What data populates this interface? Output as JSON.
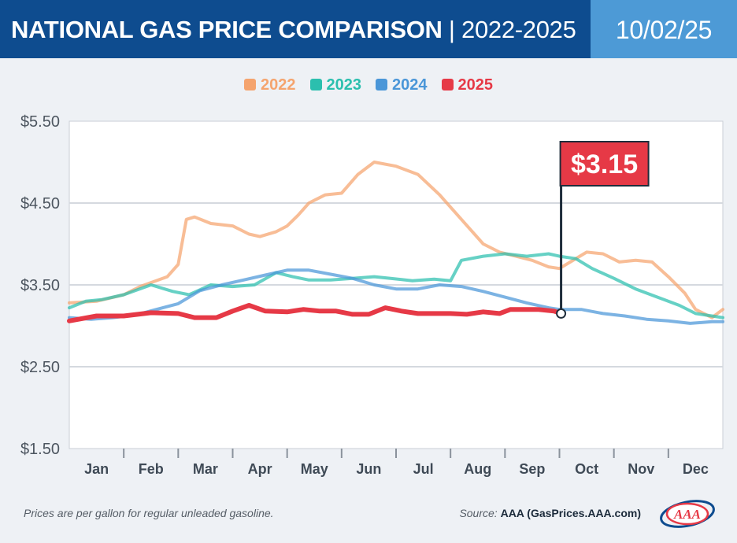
{
  "header": {
    "title_main": "NATIONAL GAS PRICE COMPARISON",
    "title_sep": " | ",
    "title_years": "2022-2025",
    "date": "10/02/25"
  },
  "colors": {
    "header_bg": "#0e4c8f",
    "date_bg": "#4d9ad6",
    "y2022": "#f5a46e",
    "y2023": "#2bbfae",
    "y2024": "#4a96d8",
    "y2025": "#e63946",
    "callout_bg": "#e63946"
  },
  "footnote": "Prices are per gallon for regular unleaded gasoline.",
  "source": {
    "label": "Source:",
    "value": "AAA (GasPrices.AAA.com)"
  },
  "logo": {
    "text": "AAA"
  },
  "chart_data": {
    "type": "line",
    "title": "",
    "xlabel": "",
    "ylabel": "",
    "ylim": [
      1.5,
      5.5
    ],
    "xlim": [
      0,
      12
    ],
    "y_ticks": [
      1.5,
      2.5,
      3.5,
      4.5,
      5.5
    ],
    "y_tick_labels": [
      "$1.50",
      "$2.50",
      "$3.50",
      "$4.50",
      "$5.50"
    ],
    "x_tick_labels": [
      "Jan",
      "Feb",
      "Mar",
      "Apr",
      "May",
      "Jun",
      "Jul",
      "Aug",
      "Sep",
      "Oct",
      "Nov",
      "Dec"
    ],
    "grid": true,
    "legend_position": "top-center",
    "callout": {
      "label": "$3.15",
      "x": 9.03,
      "y": 3.15,
      "series": "2025"
    },
    "series": [
      {
        "name": "2022",
        "x": [
          0,
          0.5,
          1.0,
          1.3,
          1.8,
          2.0,
          2.15,
          2.3,
          2.6,
          3.0,
          3.3,
          3.5,
          3.8,
          4.0,
          4.2,
          4.4,
          4.7,
          5.0,
          5.3,
          5.6,
          6.0,
          6.4,
          6.8,
          7.2,
          7.6,
          7.9,
          8.2,
          8.5,
          8.8,
          9.0,
          9.2,
          9.5,
          9.8,
          10.1,
          10.4,
          10.7,
          11.0,
          11.3,
          11.5,
          11.8,
          12.0
        ],
        "y": [
          3.28,
          3.3,
          3.38,
          3.48,
          3.6,
          3.75,
          4.3,
          4.33,
          4.25,
          4.22,
          4.12,
          4.09,
          4.15,
          4.22,
          4.35,
          4.5,
          4.6,
          4.62,
          4.85,
          5.0,
          4.95,
          4.85,
          4.6,
          4.3,
          4.0,
          3.9,
          3.85,
          3.8,
          3.72,
          3.7,
          3.78,
          3.9,
          3.88,
          3.78,
          3.8,
          3.78,
          3.6,
          3.4,
          3.2,
          3.1,
          3.2
        ]
      },
      {
        "name": "2023",
        "x": [
          0,
          0.3,
          0.6,
          1.0,
          1.5,
          1.9,
          2.2,
          2.6,
          3.0,
          3.4,
          3.8,
          4.1,
          4.4,
          4.8,
          5.2,
          5.6,
          5.9,
          6.3,
          6.7,
          7.0,
          7.2,
          7.6,
          8.0,
          8.4,
          8.8,
          9.0,
          9.3,
          9.6,
          10.0,
          10.4,
          10.8,
          11.2,
          11.5,
          11.8,
          12.0
        ],
        "y": [
          3.22,
          3.3,
          3.32,
          3.38,
          3.5,
          3.42,
          3.38,
          3.5,
          3.48,
          3.5,
          3.65,
          3.6,
          3.56,
          3.56,
          3.58,
          3.6,
          3.58,
          3.55,
          3.57,
          3.55,
          3.8,
          3.85,
          3.88,
          3.85,
          3.88,
          3.85,
          3.82,
          3.7,
          3.58,
          3.45,
          3.35,
          3.25,
          3.15,
          3.12,
          3.1
        ]
      },
      {
        "name": "2024",
        "x": [
          0,
          0.4,
          0.8,
          1.2,
          1.6,
          2.0,
          2.4,
          2.8,
          3.2,
          3.6,
          4.0,
          4.4,
          4.8,
          5.2,
          5.6,
          6.0,
          6.4,
          6.8,
          7.2,
          7.6,
          8.0,
          8.4,
          8.8,
          9.0,
          9.4,
          9.8,
          10.2,
          10.6,
          11.0,
          11.4,
          11.8,
          12.0
        ],
        "y": [
          3.1,
          3.08,
          3.1,
          3.13,
          3.2,
          3.27,
          3.43,
          3.5,
          3.56,
          3.62,
          3.68,
          3.68,
          3.63,
          3.58,
          3.5,
          3.45,
          3.45,
          3.5,
          3.48,
          3.42,
          3.35,
          3.28,
          3.22,
          3.2,
          3.2,
          3.15,
          3.12,
          3.08,
          3.06,
          3.03,
          3.05,
          3.05
        ]
      },
      {
        "name": "2025",
        "x": [
          0,
          0.5,
          1.0,
          1.5,
          2.0,
          2.3,
          2.7,
          3.0,
          3.3,
          3.6,
          4.0,
          4.3,
          4.6,
          4.9,
          5.2,
          5.5,
          5.8,
          6.1,
          6.4,
          6.7,
          7.0,
          7.3,
          7.6,
          7.9,
          8.1,
          8.3,
          8.6,
          8.9,
          9.03
        ],
        "y": [
          3.06,
          3.12,
          3.12,
          3.16,
          3.15,
          3.1,
          3.1,
          3.18,
          3.25,
          3.18,
          3.17,
          3.2,
          3.18,
          3.18,
          3.14,
          3.14,
          3.22,
          3.18,
          3.15,
          3.15,
          3.15,
          3.14,
          3.17,
          3.15,
          3.2,
          3.2,
          3.2,
          3.18,
          3.15
        ]
      }
    ]
  }
}
